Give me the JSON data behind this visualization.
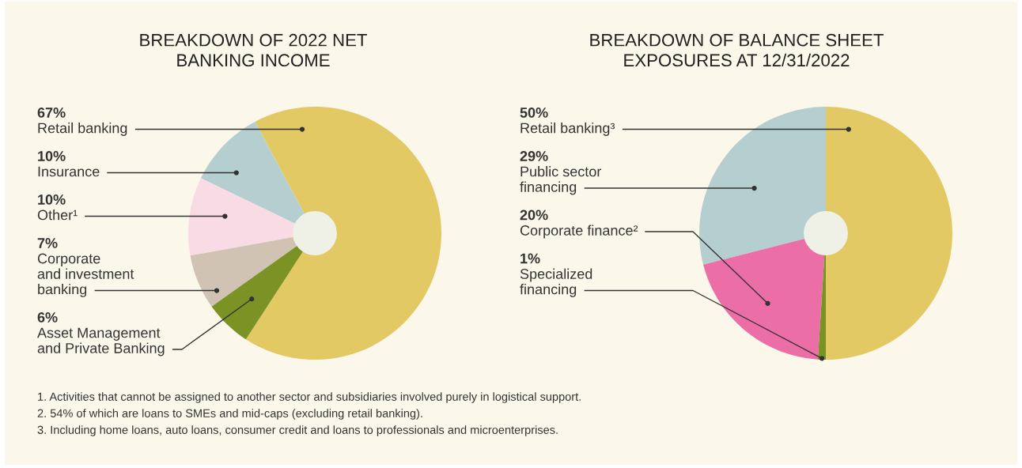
{
  "chart_data": [
    {
      "type": "pie",
      "title": "BREAKDOWN OF 2022 NET\nBANKING INCOME",
      "categories": [
        "Retail banking",
        "Insurance",
        "Other¹",
        "Corporate\nand investment\nbanking",
        "Asset Management\nand Private Banking"
      ],
      "values": [
        67,
        10,
        10,
        7,
        6
      ],
      "value_labels": [
        "67%",
        "10%",
        "10%",
        "7%",
        "6%"
      ],
      "colors": [
        "#e2c963",
        "#b5cfd0",
        "#f9dbe6",
        "#d0c3b3",
        "#7b9224"
      ]
    },
    {
      "type": "pie",
      "title": "BREAKDOWN OF BALANCE SHEET\nEXPOSURES AT 12/31/2022",
      "categories": [
        "Retail banking³",
        "Public sector\nfinancing",
        "Corporate finance²",
        "Specialized\nfinancing"
      ],
      "values": [
        50,
        29,
        20,
        1
      ],
      "value_labels": [
        "50%",
        "29%",
        "20%",
        "1%"
      ],
      "colors": [
        "#e2c963",
        "#b5cfd0",
        "#ec6ea7",
        "#7b9224"
      ],
      "annotations": [
        "1. Activities that cannot be assigned to another sector and subsidiaries involved purely in logistical support.",
        "2. 54% of which are loans to SMEs and mid-caps (excluding retail banking).",
        "3. Including home loans, auto loans, consumer credit and loans to professionals and microenterprises."
      ]
    }
  ]
}
